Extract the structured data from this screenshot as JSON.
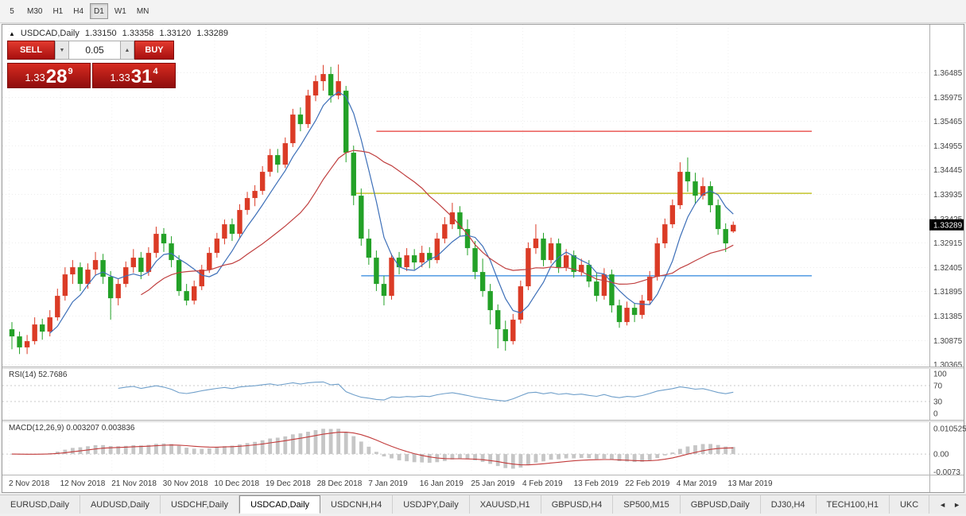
{
  "toolbar": {
    "timeframes": [
      "5",
      "M30",
      "H1",
      "H4",
      "D1",
      "W1",
      "MN"
    ],
    "active_index": 4
  },
  "chart": {
    "collapse_glyph": "▲",
    "symbol_label": "USDCAD,Daily",
    "open": "1.33150",
    "high": "1.33358",
    "low": "1.33120",
    "close": "1.33289"
  },
  "one_click": {
    "sell_label": "SELL",
    "buy_label": "BUY",
    "volume": "0.05",
    "volume_down_glyph": "▼",
    "volume_up_glyph": "▲",
    "bid": {
      "prefix": "1.33",
      "big": "28",
      "sup": "9"
    },
    "ask": {
      "prefix": "1.33",
      "big": "31",
      "sup": "4"
    }
  },
  "chart_data": {
    "type": "candlestick",
    "symbol": "USDCAD",
    "timeframe": "Daily",
    "colors": {
      "bull": "#db3b26",
      "bear": "#23a127",
      "ma_fast": "#3d6fb8",
      "ma_slow": "#c04040",
      "rsi": "#6f9fca",
      "macd_hist": "#c6c6c6",
      "macd_signal": "#c23b3b"
    },
    "price_labels": [
      "1.36485",
      "1.35975",
      "1.35465",
      "1.34955",
      "1.34445",
      "1.33935",
      "1.33425",
      "1.32915",
      "1.32405",
      "1.31895",
      "1.31385",
      "1.30875",
      "1.30365"
    ],
    "x_labels": [
      "2 Nov 2018",
      "12 Nov 2018",
      "21 Nov 2018",
      "30 Nov 2018",
      "10 Dec 2018",
      "19 Dec 2018",
      "28 Dec 2018",
      "7 Jan 2019",
      "16 Jan 2019",
      "25 Jan 2019",
      "4 Feb 2019",
      "13 Feb 2019",
      "22 Feb 2019",
      "4 Mar 2019",
      "13 Mar 2019"
    ],
    "current_price": 1.33289,
    "current_price_label": "1.33289",
    "h_lines": [
      {
        "color": "#e53935",
        "price": 1.3525,
        "start_index": 48
      },
      {
        "color": "#b8b800",
        "price": 1.3395,
        "start_index": 45
      },
      {
        "color": "#2e86de",
        "price": 1.3222,
        "start_index": 46
      }
    ],
    "moving_averages": [
      {
        "period": 6,
        "color": "#3d6fb8"
      },
      {
        "period": 18,
        "color": "#c04040"
      }
    ],
    "indicators": [
      {
        "name": "RSI",
        "label": "RSI(14) 52.7686",
        "period": 14,
        "levels": [
          "100",
          "70",
          "30",
          "0"
        ],
        "level_values": [
          100,
          70,
          30,
          0
        ],
        "dotted_levels": [
          70,
          30
        ],
        "color": "#6f9fca"
      },
      {
        "name": "MACD",
        "label": "MACD(12,26,9) 0.003207 0.003836",
        "fast": 12,
        "slow": 26,
        "signal": 9,
        "levels": [
          "0.010525",
          "0.00",
          "-0.0073"
        ],
        "level_values": [
          0.010525,
          0,
          -0.0073
        ]
      }
    ],
    "ohlc": [
      [
        1.311,
        1.3125,
        1.3068,
        1.3095
      ],
      [
        1.3095,
        1.3105,
        1.3058,
        1.3072
      ],
      [
        1.3072,
        1.3098,
        1.3058,
        1.3085
      ],
      [
        1.3085,
        1.3135,
        1.3078,
        1.312
      ],
      [
        1.312,
        1.3132,
        1.3088,
        1.3105
      ],
      [
        1.3105,
        1.315,
        1.3095,
        1.3135
      ],
      [
        1.3135,
        1.3195,
        1.3128,
        1.318
      ],
      [
        1.318,
        1.324,
        1.317,
        1.3225
      ],
      [
        1.3225,
        1.3255,
        1.3205,
        1.324
      ],
      [
        1.324,
        1.325,
        1.319,
        1.3205
      ],
      [
        1.3205,
        1.3248,
        1.3195,
        1.3235
      ],
      [
        1.3235,
        1.3272,
        1.3222,
        1.3255
      ],
      [
        1.3255,
        1.3268,
        1.3205,
        1.322
      ],
      [
        1.322,
        1.3232,
        1.313,
        1.3175
      ],
      [
        1.3175,
        1.3215,
        1.316,
        1.3205
      ],
      [
        1.3205,
        1.3252,
        1.3198,
        1.324
      ],
      [
        1.324,
        1.3278,
        1.3228,
        1.326
      ],
      [
        1.326,
        1.3272,
        1.3215,
        1.323
      ],
      [
        1.323,
        1.3282,
        1.3222,
        1.327
      ],
      [
        1.327,
        1.3325,
        1.326,
        1.331
      ],
      [
        1.331,
        1.3322,
        1.3272,
        1.329
      ],
      [
        1.329,
        1.3305,
        1.324,
        1.3255
      ],
      [
        1.3255,
        1.3265,
        1.318,
        1.319
      ],
      [
        1.319,
        1.3205,
        1.316,
        1.317
      ],
      [
        1.317,
        1.3212,
        1.3162,
        1.32
      ],
      [
        1.32,
        1.3245,
        1.3192,
        1.3235
      ],
      [
        1.3235,
        1.3282,
        1.3228,
        1.327
      ],
      [
        1.327,
        1.3312,
        1.326,
        1.33
      ],
      [
        1.33,
        1.334,
        1.3288,
        1.333
      ],
      [
        1.333,
        1.3342,
        1.3295,
        1.331
      ],
      [
        1.331,
        1.3372,
        1.3302,
        1.336
      ],
      [
        1.336,
        1.3398,
        1.335,
        1.3385
      ],
      [
        1.3385,
        1.3412,
        1.3368,
        1.34
      ],
      [
        1.34,
        1.3452,
        1.3392,
        1.344
      ],
      [
        1.344,
        1.3488,
        1.343,
        1.3475
      ],
      [
        1.3475,
        1.3488,
        1.3438,
        1.3455
      ],
      [
        1.3455,
        1.3512,
        1.3448,
        1.35
      ],
      [
        1.35,
        1.3572,
        1.3492,
        1.356
      ],
      [
        1.356,
        1.3575,
        1.3525,
        1.354
      ],
      [
        1.354,
        1.3612,
        1.3532,
        1.36
      ],
      [
        1.36,
        1.3642,
        1.3588,
        1.363
      ],
      [
        1.363,
        1.3664,
        1.361,
        1.3645
      ],
      [
        1.3645,
        1.366,
        1.3585,
        1.36
      ],
      [
        1.36,
        1.3665,
        1.3592,
        1.363
      ],
      [
        1.361,
        1.362,
        1.346,
        1.348
      ],
      [
        1.348,
        1.3495,
        1.337,
        1.339
      ],
      [
        1.339,
        1.3405,
        1.3285,
        1.33
      ],
      [
        1.33,
        1.332,
        1.3245,
        1.326
      ],
      [
        1.326,
        1.3275,
        1.319,
        1.3205
      ],
      [
        1.3205,
        1.3222,
        1.316,
        1.318
      ],
      [
        1.318,
        1.3268,
        1.3172,
        1.326
      ],
      [
        1.326,
        1.3272,
        1.3225,
        1.324
      ],
      [
        1.324,
        1.328,
        1.3232,
        1.3265
      ],
      [
        1.3265,
        1.3278,
        1.3235,
        1.325
      ],
      [
        1.325,
        1.3285,
        1.324,
        1.327
      ],
      [
        1.327,
        1.3282,
        1.3238,
        1.3255
      ],
      [
        1.3255,
        1.3312,
        1.3248,
        1.33
      ],
      [
        1.33,
        1.3345,
        1.329,
        1.333
      ],
      [
        1.333,
        1.3375,
        1.332,
        1.3355
      ],
      [
        1.3355,
        1.3368,
        1.3305,
        1.332
      ],
      [
        1.332,
        1.334,
        1.3265,
        1.328
      ],
      [
        1.328,
        1.3295,
        1.3215,
        1.323
      ],
      [
        1.323,
        1.3258,
        1.3178,
        1.319
      ],
      [
        1.319,
        1.3205,
        1.312,
        1.315
      ],
      [
        1.315,
        1.3162,
        1.307,
        1.311
      ],
      [
        1.311,
        1.3128,
        1.3065,
        1.3085
      ],
      [
        1.3085,
        1.3142,
        1.3078,
        1.313
      ],
      [
        1.313,
        1.3212,
        1.3122,
        1.32
      ],
      [
        1.32,
        1.3292,
        1.3192,
        1.328
      ],
      [
        1.328,
        1.333,
        1.3268,
        1.33
      ],
      [
        1.33,
        1.3312,
        1.3242,
        1.3255
      ],
      [
        1.3255,
        1.3302,
        1.3248,
        1.329
      ],
      [
        1.329,
        1.33,
        1.3228,
        1.324
      ],
      [
        1.324,
        1.3278,
        1.3232,
        1.3265
      ],
      [
        1.3265,
        1.3275,
        1.3218,
        1.323
      ],
      [
        1.323,
        1.3258,
        1.3222,
        1.3245
      ],
      [
        1.3245,
        1.3255,
        1.3198,
        1.321
      ],
      [
        1.321,
        1.3228,
        1.3168,
        1.318
      ],
      [
        1.318,
        1.3238,
        1.3172,
        1.3225
      ],
      [
        1.3225,
        1.3235,
        1.3145,
        1.316
      ],
      [
        1.316,
        1.3172,
        1.3113,
        1.3125
      ],
      [
        1.3125,
        1.3168,
        1.3118,
        1.3155
      ],
      [
        1.3155,
        1.3165,
        1.3125,
        1.314
      ],
      [
        1.314,
        1.3182,
        1.3132,
        1.317
      ],
      [
        1.317,
        1.3232,
        1.3162,
        1.322
      ],
      [
        1.322,
        1.3302,
        1.3212,
        1.329
      ],
      [
        1.329,
        1.3342,
        1.328,
        1.333
      ],
      [
        1.333,
        1.3382,
        1.3322,
        1.337
      ],
      [
        1.337,
        1.346,
        1.3362,
        1.344
      ],
      [
        1.344,
        1.347,
        1.3398,
        1.342
      ],
      [
        1.342,
        1.3438,
        1.3372,
        1.339
      ],
      [
        1.339,
        1.3428,
        1.3382,
        1.341
      ],
      [
        1.341,
        1.342,
        1.3355,
        1.337
      ],
      [
        1.337,
        1.3382,
        1.3308,
        1.332
      ],
      [
        1.332,
        1.3332,
        1.3272,
        1.329
      ],
      [
        1.3315,
        1.33358,
        1.3312,
        1.33289
      ]
    ]
  },
  "tabs": {
    "items": [
      "EURUSD,Daily",
      "AUDUSD,Daily",
      "USDCHF,Daily",
      "USDCAD,Daily",
      "USDCNH,H4",
      "USDJPY,Daily",
      "XAUUSD,H1",
      "GBPUSD,H4",
      "SP500,M15",
      "GBPUSD,Daily",
      "DJ30,H4",
      "TECH100,H1",
      "UKC"
    ],
    "active_index": 3,
    "left_arrow": "◄",
    "right_arrow": "►"
  }
}
